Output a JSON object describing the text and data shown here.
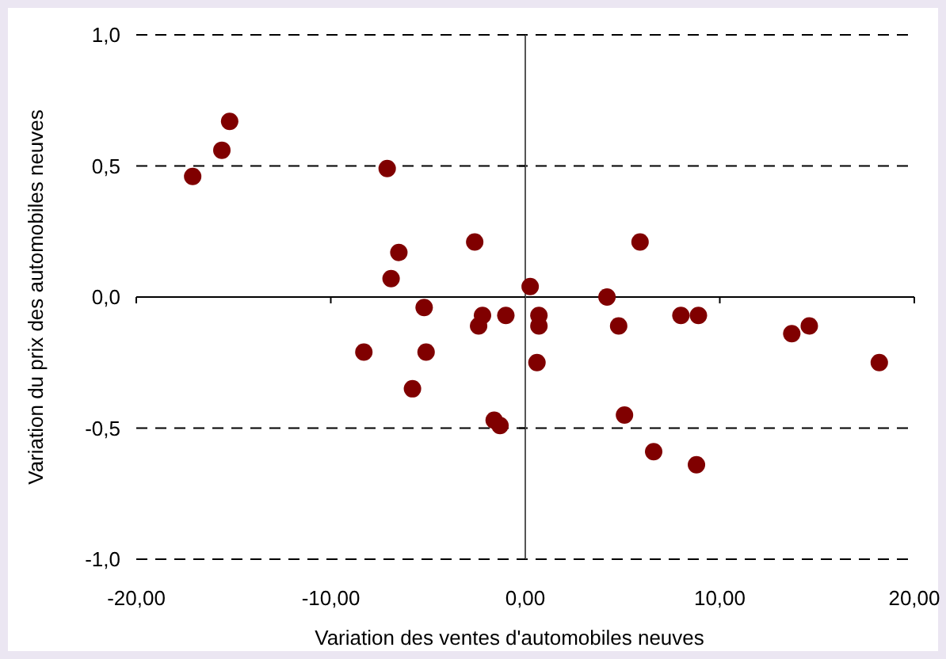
{
  "chart_data": {
    "type": "scatter",
    "xlabel": "Variation des ventes d'automobiles neuves",
    "ylabel": "Variation du prix des automobiles neuves",
    "x": [
      -15.2,
      -15.6,
      -17.1,
      -7.1,
      -6.5,
      -6.9,
      -2.6,
      0.25,
      -5.2,
      -2.2,
      -2.4,
      -1.0,
      -8.3,
      -5.1,
      -5.8,
      -1.6,
      -1.3,
      0.7,
      0.7,
      0.6,
      5.9,
      4.2,
      4.8,
      5.1,
      6.6,
      8.0,
      8.9,
      8.8,
      13.7,
      14.6,
      18.2
    ],
    "series": [
      {
        "color": "#800000",
        "values": [
          0.67,
          0.56,
          0.46,
          0.49,
          0.17,
          0.07,
          0.21,
          0.04,
          -0.04,
          -0.07,
          -0.11,
          -0.07,
          -0.21,
          -0.21,
          -0.35,
          -0.47,
          -0.49,
          -0.07,
          -0.11,
          -0.25,
          0.21,
          0.0,
          -0.11,
          -0.45,
          -0.59,
          -0.07,
          -0.07,
          -0.64,
          -0.14,
          -0.11,
          -0.25
        ]
      }
    ],
    "xlim": [
      -20,
      20
    ],
    "ylim": [
      -1,
      1
    ],
    "xticks": [
      {
        "value": -20,
        "label": "-20,00"
      },
      {
        "value": -10,
        "label": "-10,00"
      },
      {
        "value": 0,
        "label": "0,00"
      },
      {
        "value": 10,
        "label": "10,00"
      },
      {
        "value": 20,
        "label": "20,00"
      }
    ],
    "yticks": [
      {
        "value": -1,
        "label": "-1,0"
      },
      {
        "value": -0.5,
        "label": "-0,5"
      },
      {
        "value": 0,
        "label": "0,0"
      },
      {
        "value": 0.5,
        "label": "0,5"
      },
      {
        "value": 1,
        "label": "1,0"
      }
    ],
    "grid": "y",
    "marker": "circle"
  }
}
